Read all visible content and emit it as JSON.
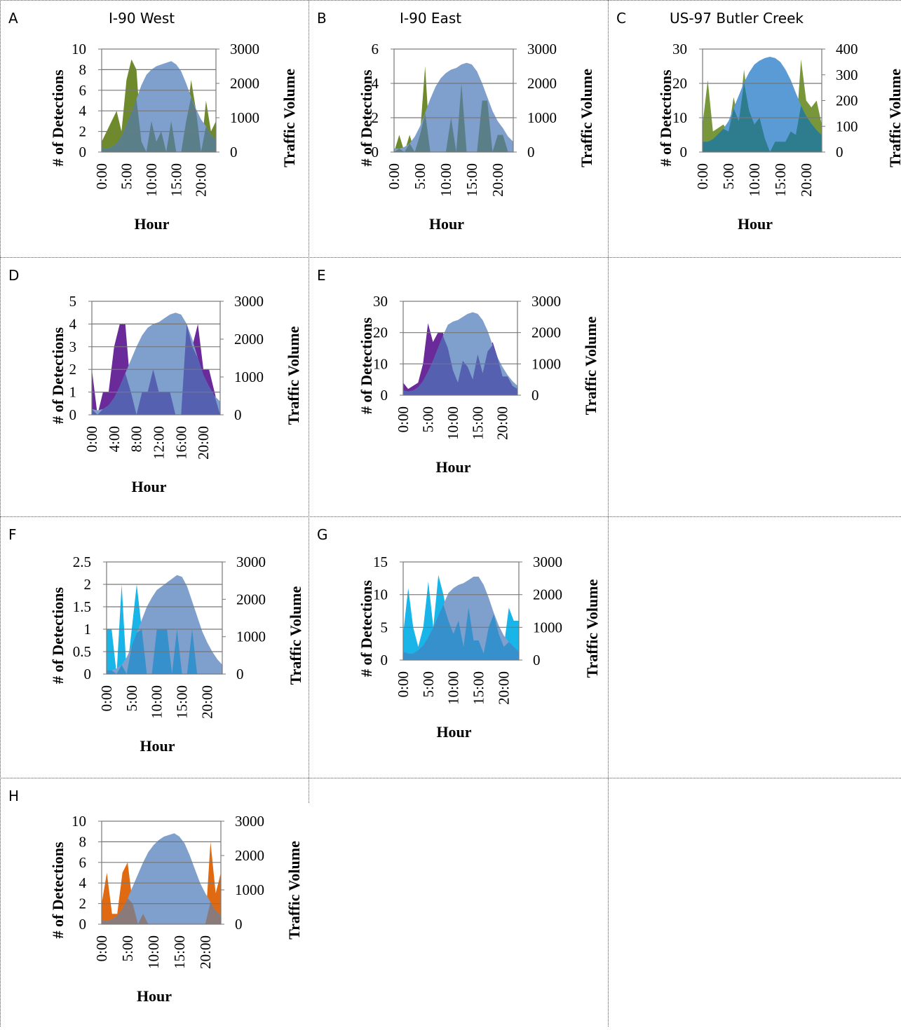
{
  "colors": {
    "traffic": "#7f9fcc",
    "traffic_c": "#5b9bd5",
    "gridline": "#777777",
    "axis": "#777777"
  },
  "charts": [
    {
      "panel": "A",
      "title": "I-90 West",
      "color": "#6e8a2c",
      "overlap": "#5a7f88",
      "ylim_left": [
        0,
        10
      ],
      "left_ticks": [
        "0",
        "2",
        "4",
        "6",
        "8",
        "10"
      ],
      "ylim_right": [
        0,
        3000
      ],
      "right_ticks": [
        "0",
        "1000",
        "2000",
        "3000"
      ],
      "x_ticks": [
        "0:00",
        "5:00",
        "10:00",
        "15:00",
        "20:00"
      ],
      "x_tick_hours": [
        0,
        5,
        10,
        15,
        20
      ],
      "gridlines": [
        2,
        4,
        6,
        8
      ]
    },
    {
      "panel": "B",
      "title": "I-90 East",
      "color": "#6e8a2c",
      "overlap": "#5a7f88",
      "ylim_left": [
        0,
        6
      ],
      "left_ticks": [
        "0",
        "2",
        "4",
        "6"
      ],
      "ylim_right": [
        0,
        3000
      ],
      "right_ticks": [
        "0",
        "1000",
        "2000",
        "3000"
      ],
      "x_ticks": [
        "0:00",
        "5:00",
        "10:00",
        "15:00",
        "20:00"
      ],
      "x_tick_hours": [
        0,
        5,
        10,
        15,
        20
      ],
      "gridlines": [
        2,
        4
      ]
    },
    {
      "panel": "C",
      "title": "US-97 Butler Creek",
      "color": "#78963a",
      "overlap": "#2e7d8e",
      "ylim_left": [
        0,
        30
      ],
      "left_ticks": [
        "0",
        "10",
        "20",
        "30"
      ],
      "ylim_right": [
        0,
        400
      ],
      "right_ticks": [
        "0",
        "100",
        "200",
        "300",
        "400"
      ],
      "x_ticks": [
        "0:00",
        "5:00",
        "10:00",
        "15:00",
        "20:00"
      ],
      "x_tick_hours": [
        0,
        5,
        10,
        15,
        20
      ],
      "gridlines": [
        10,
        20
      ]
    },
    {
      "panel": "D",
      "title": "",
      "color": "#6a2a9a",
      "overlap": "#5560b0",
      "ylim_left": [
        0,
        5
      ],
      "left_ticks": [
        "0",
        "1",
        "2",
        "3",
        "4",
        "5"
      ],
      "ylim_right": [
        0,
        3000
      ],
      "right_ticks": [
        "0",
        "1000",
        "2000",
        "3000"
      ],
      "x_ticks": [
        "0:00",
        "4:00",
        "8:00",
        "12:00",
        "16:00",
        "20:00"
      ],
      "x_tick_hours": [
        0,
        4,
        8,
        12,
        16,
        20
      ],
      "gridlines": [
        1,
        2,
        3,
        4
      ]
    },
    {
      "panel": "E",
      "title": "",
      "color": "#6a2a9a",
      "overlap": "#5560b0",
      "ylim_left": [
        0,
        30
      ],
      "left_ticks": [
        "0",
        "10",
        "20",
        "30"
      ],
      "ylim_right": [
        0,
        3000
      ],
      "right_ticks": [
        "0",
        "1000",
        "2000",
        "3000"
      ],
      "x_ticks": [
        "0:00",
        "5:00",
        "10:00",
        "15:00",
        "20:00"
      ],
      "x_tick_hours": [
        0,
        5,
        10,
        15,
        20
      ],
      "gridlines": [
        10,
        20
      ]
    },
    {
      "panel": "F",
      "title": "",
      "color": "#19b4e8",
      "overlap": "#3590cc",
      "ylim_left": [
        0,
        2.5
      ],
      "left_ticks": [
        "0",
        "0.5",
        "1",
        "1.5",
        "2",
        "2.5"
      ],
      "ylim_right": [
        0,
        3000
      ],
      "right_ticks": [
        "0",
        "1000",
        "2000",
        "3000"
      ],
      "x_ticks": [
        "0:00",
        "5:00",
        "10:00",
        "15:00",
        "20:00"
      ],
      "x_tick_hours": [
        0,
        5,
        10,
        15,
        20
      ],
      "gridlines": [
        0.5,
        1,
        1.5,
        2
      ]
    },
    {
      "panel": "G",
      "title": "",
      "color": "#19b4e8",
      "overlap": "#3590cc",
      "ylim_left": [
        0,
        15
      ],
      "left_ticks": [
        "0",
        "5",
        "10",
        "15"
      ],
      "ylim_right": [
        0,
        3000
      ],
      "right_ticks": [
        "0",
        "1000",
        "2000",
        "3000"
      ],
      "x_ticks": [
        "0:00",
        "5:00",
        "10:00",
        "15:00",
        "20:00"
      ],
      "x_tick_hours": [
        0,
        5,
        10,
        15,
        20
      ],
      "gridlines": [
        5,
        10
      ]
    },
    {
      "panel": "H",
      "title": "",
      "color": "#e06a12",
      "overlap": "#8a7a7a",
      "ylim_left": [
        0,
        10
      ],
      "left_ticks": [
        "0",
        "2",
        "4",
        "6",
        "8",
        "10"
      ],
      "ylim_right": [
        0,
        3000
      ],
      "right_ticks": [
        "0",
        "1000",
        "2000",
        "3000"
      ],
      "x_ticks": [
        "0:00",
        "5:00",
        "10:00",
        "15:00",
        "20:00"
      ],
      "x_tick_hours": [
        0,
        5,
        10,
        15,
        20
      ],
      "gridlines": [
        2,
        4,
        6,
        8
      ]
    }
  ],
  "labels": {
    "ylabel_left": "# of Detections",
    "ylabel_right": "Traffic Volume",
    "xlabel": "Hour"
  },
  "chart_data": [
    {
      "type": "area",
      "panel": "A",
      "title": "I-90 West",
      "xlabel": "Hour",
      "ylabel": "# of Detections",
      "y2label": "Traffic Volume",
      "x": [
        0,
        1,
        2,
        3,
        4,
        5,
        6,
        7,
        8,
        9,
        10,
        11,
        12,
        13,
        14,
        15,
        16,
        17,
        18,
        19,
        20,
        21,
        22,
        23
      ],
      "ylim": [
        0,
        10
      ],
      "y2lim": [
        0,
        3000
      ],
      "series": [
        {
          "name": "",
          "axis": "left",
          "values": [
            1,
            2,
            3,
            4,
            2,
            7,
            9,
            8,
            1,
            0,
            3,
            1,
            2,
            0,
            3,
            0,
            0,
            3,
            7,
            4,
            0,
            5,
            2,
            3
          ]
        },
        {
          "name": "",
          "axis": "right",
          "values": [
            100,
            100,
            150,
            250,
            450,
            800,
            1150,
            1550,
            1950,
            2250,
            2400,
            2500,
            2550,
            2600,
            2650,
            2550,
            2350,
            2000,
            1600,
            1250,
            950,
            750,
            500,
            350
          ]
        }
      ]
    },
    {
      "type": "area",
      "panel": "B",
      "title": "I-90 East",
      "xlabel": "Hour",
      "ylabel": "# of Detections",
      "y2label": "Traffic Volume",
      "x": [
        0,
        1,
        2,
        3,
        4,
        5,
        6,
        7,
        8,
        9,
        10,
        11,
        12,
        13,
        14,
        15,
        16,
        17,
        18,
        19,
        20,
        21,
        22,
        23
      ],
      "ylim": [
        0,
        6
      ],
      "y2lim": [
        0,
        3000
      ],
      "series": [
        {
          "name": "",
          "axis": "left",
          "values": [
            0,
            1,
            0,
            1,
            0,
            1,
            5,
            0,
            0,
            0,
            0,
            2,
            0,
            4,
            0,
            0,
            0,
            3,
            3,
            0,
            1,
            1,
            0,
            0
          ]
        },
        {
          "name": "",
          "axis": "right",
          "values": [
            100,
            100,
            150,
            250,
            450,
            750,
            1150,
            1550,
            1900,
            2150,
            2300,
            2400,
            2450,
            2550,
            2600,
            2550,
            2350,
            2000,
            1600,
            1200,
            900,
            700,
            450,
            300
          ]
        }
      ]
    },
    {
      "type": "area",
      "panel": "C",
      "title": "US-97 Butler Creek",
      "xlabel": "Hour",
      "ylabel": "# of Detections",
      "y2label": "Traffic Volume",
      "x": [
        0,
        1,
        2,
        3,
        4,
        5,
        6,
        7,
        8,
        9,
        10,
        11,
        12,
        13,
        14,
        15,
        16,
        17,
        18,
        19,
        20,
        21,
        22,
        23
      ],
      "ylim": [
        0,
        30
      ],
      "y2lim": [
        0,
        400
      ],
      "series": [
        {
          "name": "",
          "axis": "left",
          "values": [
            8,
            21,
            6,
            7,
            8,
            6,
            16,
            9,
            24,
            12,
            8,
            10,
            4,
            0,
            3,
            3,
            3,
            6,
            5,
            27,
            15,
            13,
            15,
            8
          ]
        },
        {
          "name": "",
          "axis": "right",
          "values": [
            40,
            40,
            50,
            70,
            90,
            120,
            170,
            220,
            270,
            310,
            340,
            355,
            365,
            370,
            365,
            350,
            320,
            280,
            230,
            180,
            140,
            110,
            85,
            65
          ]
        }
      ]
    },
    {
      "type": "area",
      "panel": "D",
      "title": "",
      "xlabel": "Hour",
      "ylabel": "# of Detections",
      "y2label": "Traffic Volume",
      "x": [
        0,
        1,
        2,
        3,
        4,
        5,
        6,
        7,
        8,
        9,
        10,
        11,
        12,
        13,
        14,
        15,
        16,
        17,
        18,
        19,
        20,
        21,
        22,
        23
      ],
      "ylim": [
        0,
        5
      ],
      "y2lim": [
        0,
        3000
      ],
      "series": [
        {
          "name": "",
          "axis": "left",
          "values": [
            2,
            0,
            1,
            1,
            3,
            4,
            4,
            1,
            0,
            1,
            1,
            2,
            1,
            1,
            1,
            0,
            0,
            4,
            3,
            4,
            2,
            2,
            1,
            0
          ]
        },
        {
          "name": "",
          "axis": "right",
          "values": [
            150,
            120,
            150,
            250,
            450,
            750,
            1100,
            1450,
            1800,
            2100,
            2300,
            2400,
            2450,
            2550,
            2650,
            2700,
            2650,
            2400,
            2000,
            1500,
            1050,
            750,
            500,
            350
          ]
        }
      ]
    },
    {
      "type": "area",
      "panel": "E",
      "title": "",
      "xlabel": "Hour",
      "ylabel": "# of Detections",
      "y2label": "Traffic Volume",
      "x": [
        0,
        1,
        2,
        3,
        4,
        5,
        6,
        7,
        8,
        9,
        10,
        11,
        12,
        13,
        14,
        15,
        16,
        17,
        18,
        19,
        20,
        21,
        22,
        23
      ],
      "ylim": [
        0,
        30
      ],
      "y2lim": [
        0,
        3000
      ],
      "series": [
        {
          "name": "",
          "axis": "left",
          "values": [
            4,
            2,
            3,
            4,
            10,
            23,
            17,
            20,
            20,
            15,
            8,
            4,
            11,
            9,
            5,
            13,
            7,
            14,
            17,
            12,
            6,
            6,
            3,
            2
          ]
        },
        {
          "name": "",
          "axis": "right",
          "values": [
            150,
            120,
            150,
            250,
            450,
            750,
            1100,
            1500,
            1900,
            2250,
            2350,
            2400,
            2500,
            2600,
            2650,
            2600,
            2400,
            2050,
            1600,
            1200,
            900,
            650,
            450,
            300
          ]
        }
      ]
    },
    {
      "type": "area",
      "panel": "F",
      "title": "",
      "xlabel": "Hour",
      "ylabel": "# of Detections",
      "y2label": "Traffic Volume",
      "x": [
        0,
        1,
        2,
        3,
        4,
        5,
        6,
        7,
        8,
        9,
        10,
        11,
        12,
        13,
        14,
        15,
        16,
        17,
        18,
        19,
        20,
        21,
        22,
        23
      ],
      "ylim": [
        0,
        2.5
      ],
      "y2lim": [
        0,
        3000
      ],
      "series": [
        {
          "name": "",
          "axis": "left",
          "values": [
            1,
            1,
            0,
            2,
            0,
            1,
            2,
            1,
            0,
            0,
            1,
            1,
            1,
            0,
            1,
            0,
            0,
            1,
            0,
            0,
            0,
            0,
            0,
            0
          ]
        },
        {
          "name": "",
          "axis": "right",
          "values": [
            100,
            100,
            150,
            250,
            450,
            750,
            1100,
            1450,
            1800,
            2050,
            2250,
            2350,
            2450,
            2550,
            2650,
            2600,
            2350,
            1950,
            1550,
            1150,
            850,
            600,
            400,
            250
          ]
        }
      ]
    },
    {
      "type": "area",
      "panel": "G",
      "title": "",
      "xlabel": "Hour",
      "ylabel": "# of Detections",
      "y2label": "Traffic Volume",
      "x": [
        0,
        1,
        2,
        3,
        4,
        5,
        6,
        7,
        8,
        9,
        10,
        11,
        12,
        13,
        14,
        15,
        16,
        17,
        18,
        19,
        20,
        21,
        22,
        23
      ],
      "ylim": [
        0,
        15
      ],
      "y2lim": [
        0,
        3000
      ],
      "series": [
        {
          "name": "",
          "axis": "left",
          "values": [
            4,
            11,
            5,
            2,
            5,
            12,
            5,
            13,
            10,
            6,
            4,
            6,
            2,
            8,
            3,
            3,
            1,
            5,
            7,
            4,
            2,
            8,
            6,
            6
          ]
        },
        {
          "name": "",
          "axis": "right",
          "values": [
            250,
            200,
            200,
            300,
            450,
            700,
            1000,
            1350,
            1700,
            2050,
            2200,
            2300,
            2350,
            2450,
            2550,
            2550,
            2300,
            1900,
            1450,
            1050,
            750,
            550,
            400,
            250
          ]
        }
      ]
    },
    {
      "type": "area",
      "panel": "H",
      "title": "",
      "xlabel": "Hour",
      "ylabel": "# of Detections",
      "y2label": "Traffic Volume",
      "x": [
        0,
        1,
        2,
        3,
        4,
        5,
        6,
        7,
        8,
        9,
        10,
        11,
        12,
        13,
        14,
        15,
        16,
        17,
        18,
        19,
        20,
        21,
        22,
        23
      ],
      "ylim": [
        0,
        10
      ],
      "y2lim": [
        0,
        3000
      ],
      "series": [
        {
          "name": "",
          "axis": "left",
          "values": [
            2,
            5,
            1,
            1,
            5,
            6,
            2,
            0,
            1,
            0,
            0,
            0,
            0,
            0,
            0,
            0,
            0,
            0,
            0,
            0,
            0,
            8,
            3,
            5
          ]
        },
        {
          "name": "",
          "axis": "right",
          "values": [
            100,
            100,
            150,
            250,
            450,
            750,
            1100,
            1450,
            1800,
            2100,
            2300,
            2450,
            2550,
            2600,
            2650,
            2550,
            2350,
            2000,
            1600,
            1200,
            900,
            650,
            400,
            250
          ]
        }
      ]
    }
  ]
}
